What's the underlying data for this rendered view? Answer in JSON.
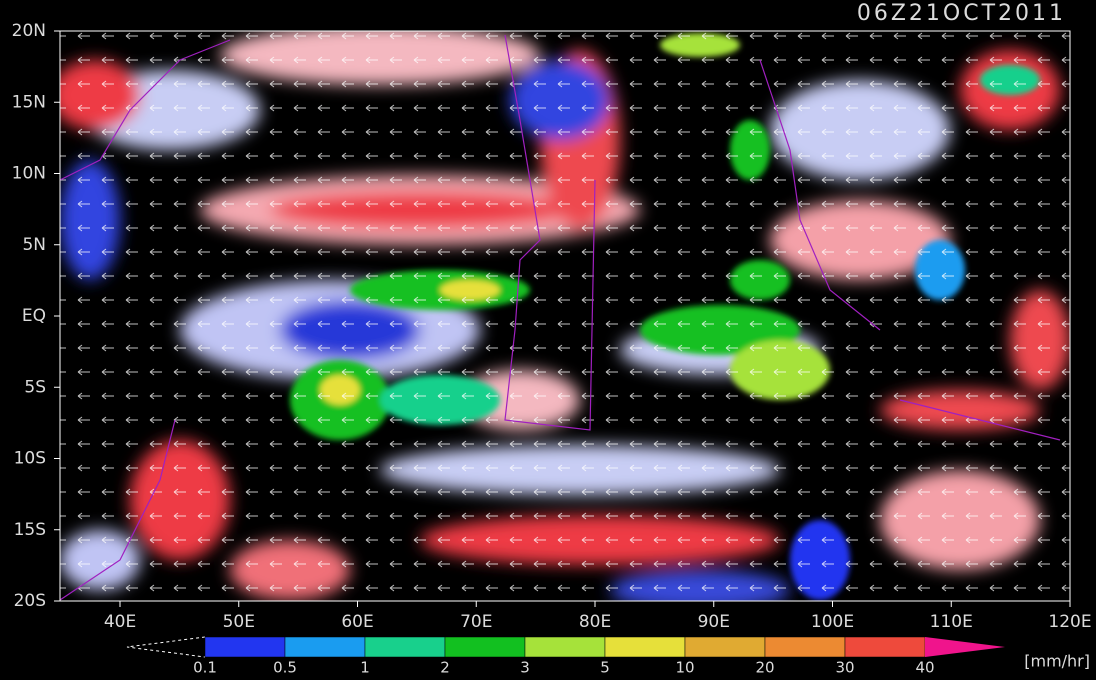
{
  "header": {
    "timestamp": "06Z21OCT2011"
  },
  "axes": {
    "lat_labels": [
      "20N",
      "15N",
      "10N",
      "5N",
      "EQ",
      "5S",
      "10S",
      "15S",
      "20S"
    ],
    "lon_labels": [
      "40E",
      "50E",
      "60E",
      "70E",
      "80E",
      "90E",
      "100E",
      "110E",
      "120E"
    ]
  },
  "legend": {
    "levels": [
      "0.1",
      "0.5",
      "1",
      "2",
      "3",
      "5",
      "10",
      "20",
      "30",
      "40"
    ],
    "colors": [
      "#2236f0",
      "#1a9cf0",
      "#18d08c",
      "#12c020",
      "#a6e23a",
      "#e6e03a",
      "#e0aa32",
      "#ec8a32",
      "#ee4a3c"
    ],
    "over_color": "#f0148c",
    "unit": "[mm/hr]"
  }
}
